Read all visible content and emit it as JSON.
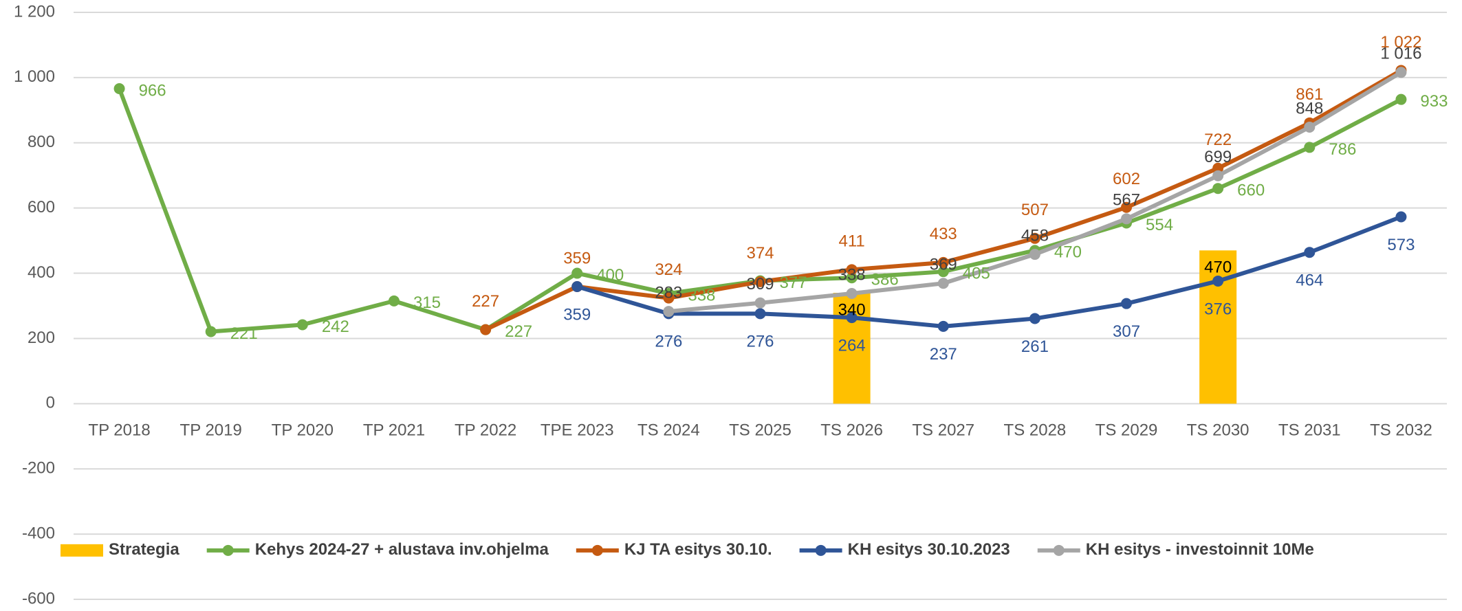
{
  "chart_data": {
    "type": "line",
    "categories": [
      "TP 2018",
      "TP 2019",
      "TP 2020",
      "TP 2021",
      "TP 2022",
      "TPE 2023",
      "TS 2024",
      "TS 2025",
      "TS 2026",
      "TS 2027",
      "TS 2028",
      "TS 2029",
      "TS 2030",
      "TS 2031",
      "TS 2032"
    ],
    "ylim": [
      -600,
      1200
    ],
    "yticks": [
      -600,
      -400,
      -200,
      0,
      200,
      400,
      600,
      800,
      {
        "value": 1000,
        "label": "1 000"
      },
      {
        "value": 1200,
        "label": "1 200"
      }
    ],
    "grid": true,
    "legend": "bottom",
    "series": [
      {
        "name": "Strategia",
        "type": "bar",
        "color": "#FFC000",
        "label_color": "#000000",
        "values": [
          null,
          null,
          null,
          null,
          null,
          null,
          null,
          null,
          340,
          null,
          null,
          null,
          470,
          null,
          null
        ]
      },
      {
        "name": "Kehys 2024-27 + alustava inv.ohjelma",
        "color": "#70AD47",
        "label_color": "#70AD47",
        "values": [
          966,
          221,
          242,
          315,
          227,
          400,
          338,
          377,
          386,
          405,
          470,
          554,
          660,
          786,
          933
        ]
      },
      {
        "name": "KJ TA esitys 30.10.",
        "color": "#C55A11",
        "label_color": "#C55A11",
        "values": [
          null,
          null,
          null,
          null,
          227,
          359,
          324,
          374,
          411,
          433,
          507,
          602,
          722,
          861,
          1022
        ],
        "value_labels": [
          null,
          null,
          null,
          null,
          "227",
          "359",
          "324",
          "374",
          "411",
          "433",
          "507",
          "602",
          "722",
          "861",
          "1 022"
        ]
      },
      {
        "name": "KH esitys 30.10.2023",
        "color": "#2F5597",
        "label_color": "#2F5597",
        "values": [
          null,
          null,
          null,
          null,
          null,
          359,
          276,
          276,
          264,
          237,
          261,
          307,
          376,
          464,
          573
        ]
      },
      {
        "name": "KH esitys - investoinnit 10Me",
        "color": "#A5A5A5",
        "label_color": "#404040",
        "values": [
          null,
          null,
          null,
          null,
          null,
          null,
          283,
          309,
          338,
          369,
          458,
          567,
          699,
          848,
          1016
        ],
        "value_labels": [
          null,
          null,
          null,
          null,
          null,
          null,
          "283",
          "309",
          "338",
          "369",
          "458",
          "567",
          "699",
          "848",
          "1 016"
        ]
      }
    ]
  }
}
